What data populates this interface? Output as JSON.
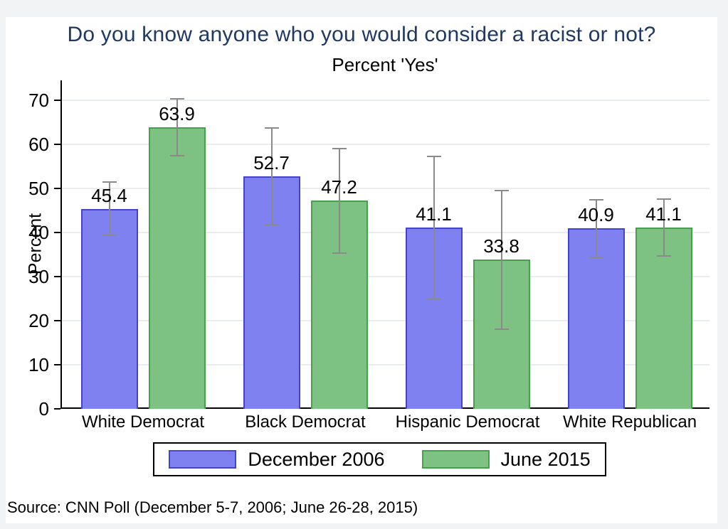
{
  "title": "Do you know anyone who you would consider a racist or not?",
  "subtitle": "Percent 'Yes'",
  "source_note": "Source: CNN Poll (December 5-7, 2006; June 26-28, 2015)",
  "colors": {
    "title_text": "#1f3864",
    "axis": "#000000",
    "gridline": "#e8edf2",
    "error_bar": "#8a8a8a",
    "series_2006_fill": "#7f81f1",
    "series_2006_border": "#4343cc",
    "series_2015_fill": "#7ec283",
    "series_2015_border": "#46a04c"
  },
  "chart_data": {
    "type": "bar",
    "title": "Do you know anyone who you would consider a racist or not?",
    "subtitle": "Percent 'Yes'",
    "xlabel": "",
    "ylabel": "Percent",
    "ylim": [
      0,
      70
    ],
    "yticks": [
      0,
      10,
      20,
      30,
      40,
      50,
      60,
      70
    ],
    "grid": true,
    "legend_position": "bottom",
    "error_bars": true,
    "categories": [
      "White Democrat",
      "Black Democrat",
      "Hispanic Democrat",
      "White Republican"
    ],
    "series": [
      {
        "name": "December 2006",
        "fill": "#7f81f1",
        "border": "#4343cc",
        "values": [
          45.4,
          52.7,
          41.1,
          40.9
        ],
        "ci_low": [
          39.3,
          41.7,
          24.9,
          34.4
        ],
        "ci_high": [
          51.5,
          63.7,
          57.3,
          47.4
        ]
      },
      {
        "name": "June 2015",
        "fill": "#7ec283",
        "border": "#46a04c",
        "values": [
          63.9,
          47.2,
          33.8,
          41.1
        ],
        "ci_low": [
          57.5,
          35.4,
          18.1,
          34.6
        ],
        "ci_high": [
          70.3,
          59.0,
          49.5,
          47.6
        ]
      }
    ]
  }
}
